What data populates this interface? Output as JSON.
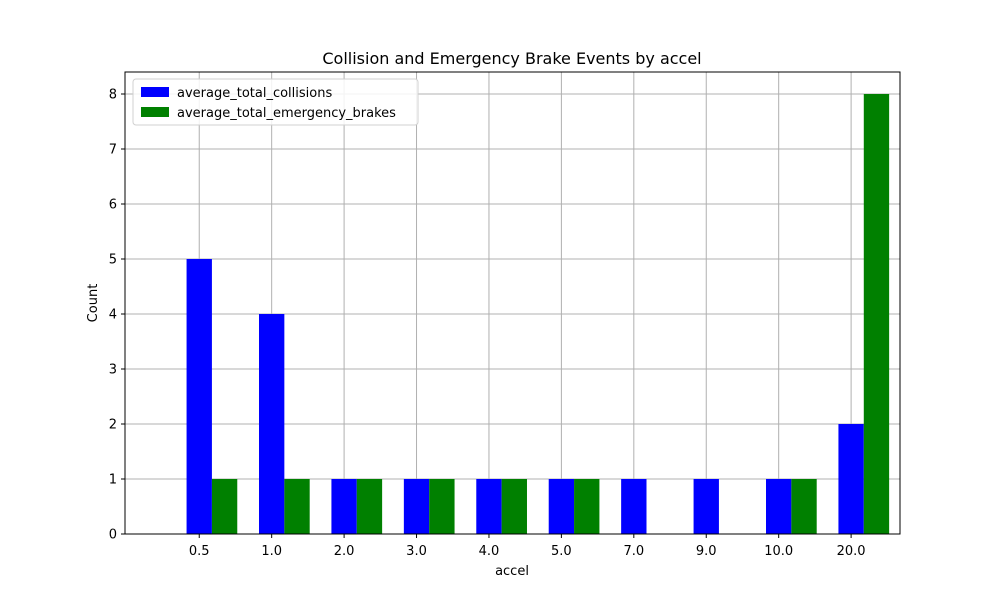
{
  "chart_data": {
    "type": "bar",
    "title": "Collision and Emergency Brake Events by accel",
    "xlabel": "accel",
    "ylabel": "Count",
    "categories": [
      "0.5",
      "1.0",
      "2.0",
      "3.0",
      "4.0",
      "5.0",
      "7.0",
      "9.0",
      "10.0",
      "20.0"
    ],
    "series": [
      {
        "name": "average_total_collisions",
        "color": "#0000ff",
        "values": [
          5,
          4,
          1,
          1,
          1,
          1,
          1,
          1,
          1,
          2
        ]
      },
      {
        "name": "average_total_emergency_brakes",
        "color": "#008000",
        "values": [
          1,
          1,
          1,
          1,
          1,
          1,
          0,
          0,
          1,
          8
        ]
      }
    ],
    "ylim": [
      0,
      8.4
    ],
    "yticks": [
      0,
      1,
      2,
      3,
      4,
      5,
      6,
      7,
      8
    ],
    "grid": true,
    "legend_position": "top-left"
  }
}
